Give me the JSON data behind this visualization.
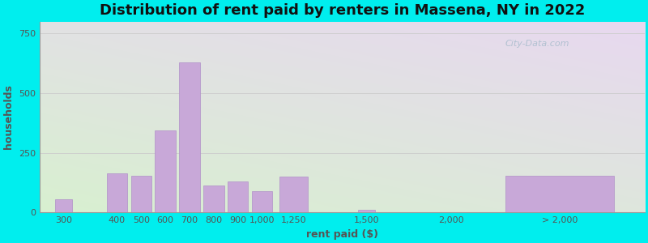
{
  "title": "Distribution of rent paid by renters in Massena, NY in 2022",
  "xlabel": "rent paid ($)",
  "ylabel": "households",
  "bar_color": "#c8a8d8",
  "bar_edgecolor": "#b090c8",
  "background_color": "#00eeee",
  "categories": [
    "300",
    "400",
    "500",
    "600",
    "700",
    "800",
    "900",
    "1,000",
    "1,250",
    "1,500",
    "2,000",
    "> 2,000"
  ],
  "values": [
    55,
    165,
    155,
    345,
    630,
    115,
    130,
    90,
    150,
    10,
    0,
    155
  ],
  "x_positions": [
    1.0,
    3.2,
    4.2,
    5.2,
    6.2,
    7.2,
    8.2,
    9.2,
    10.5,
    13.5,
    17.0,
    21.5
  ],
  "bar_widths": [
    0.7,
    0.85,
    0.85,
    0.85,
    0.85,
    0.85,
    0.85,
    0.85,
    1.2,
    0.7,
    0.5,
    4.5
  ],
  "xlim": [
    0,
    25
  ],
  "ylim": [
    0,
    800
  ],
  "yticks": [
    0,
    250,
    500,
    750
  ],
  "title_fontsize": 13,
  "axis_label_fontsize": 9,
  "tick_fontsize": 8,
  "grid_color": "#cccccc",
  "watermark": "City-Data.com"
}
